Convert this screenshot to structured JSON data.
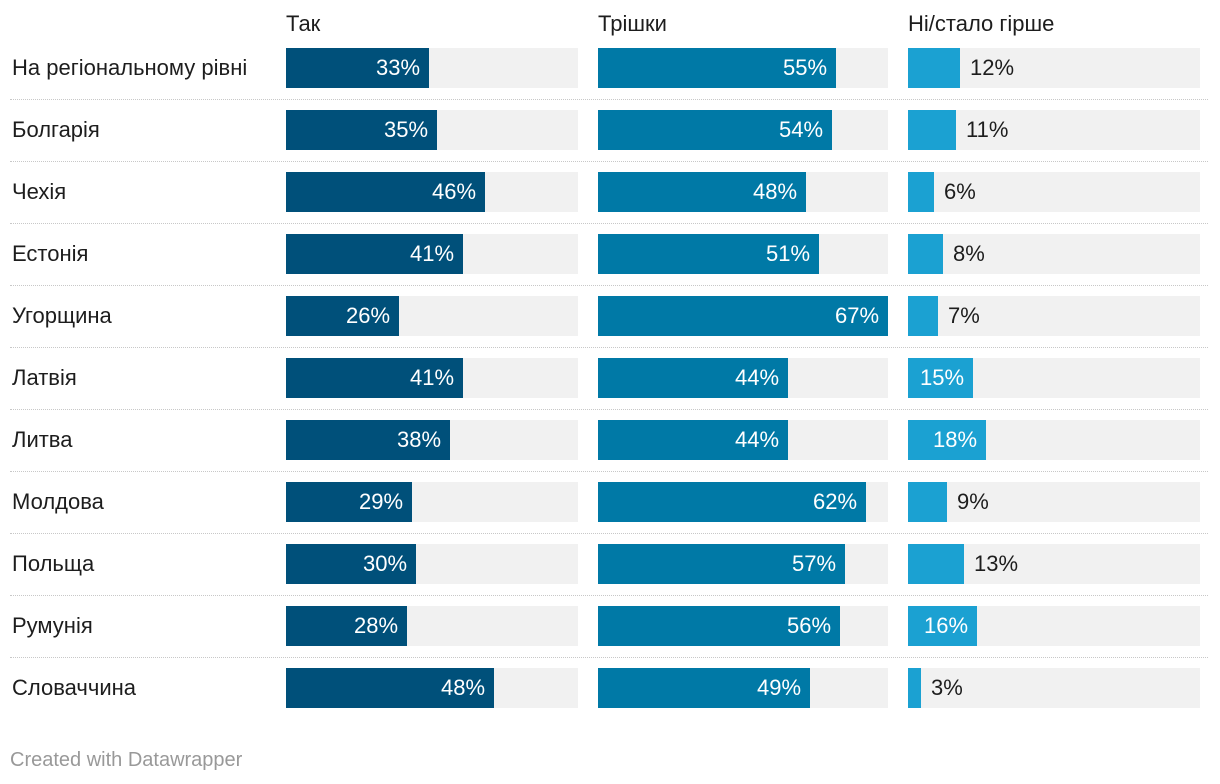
{
  "chart_data": {
    "type": "bar",
    "orientation": "horizontal",
    "layout": "split-bars",
    "grid": false,
    "series": [
      {
        "name": "Так",
        "color": "#00507a",
        "values": [
          33,
          35,
          46,
          41,
          26,
          41,
          38,
          29,
          30,
          28,
          48
        ]
      },
      {
        "name": "Трішки",
        "color": "#0079a6",
        "values": [
          55,
          54,
          48,
          51,
          67,
          44,
          44,
          62,
          57,
          56,
          49
        ]
      },
      {
        "name": "Ні/стало гірше",
        "color": "#1ba1d2",
        "values": [
          12,
          11,
          6,
          8,
          7,
          15,
          18,
          9,
          13,
          16,
          3
        ]
      }
    ],
    "categories": [
      "На регіональному рівні",
      "Болгарія",
      "Чехія",
      "Естонія",
      "Угорщина",
      "Латвія",
      "Литва",
      "Молдова",
      "Польща",
      "Румунія",
      "Словаччина"
    ],
    "value_suffix": "%",
    "xlim": [
      0,
      67
    ],
    "track_color": "#f1f1f1"
  },
  "footer": {
    "credit": "Created with Datawrapper"
  }
}
